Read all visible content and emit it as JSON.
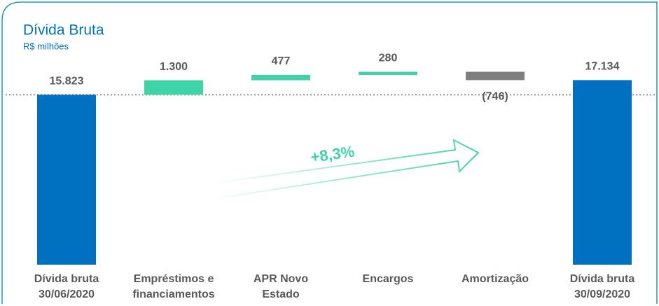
{
  "chart_data": {
    "type": "waterfall",
    "title": "Dívida Bruta",
    "subtitle": "R$ milhões",
    "categories": [
      "Dívida bruta\n30/06/2020",
      "Empréstimos e\nfinanciamentos",
      "APR Novo\nEstado",
      "Encargos",
      "Amortização",
      "Dívida bruta\n30/09/2020"
    ],
    "values": [
      15823,
      1300,
      477,
      280,
      -746,
      17134
    ],
    "value_labels": [
      "15.823",
      "1.300",
      "477",
      "280",
      "(746)",
      "17.134"
    ],
    "total_color": "#0070c0",
    "increase_color": "#3fd4a8",
    "decrease_color": "#7f7f7f",
    "ylim": [
      600,
      18100
    ],
    "annotation": "+8,3%"
  }
}
